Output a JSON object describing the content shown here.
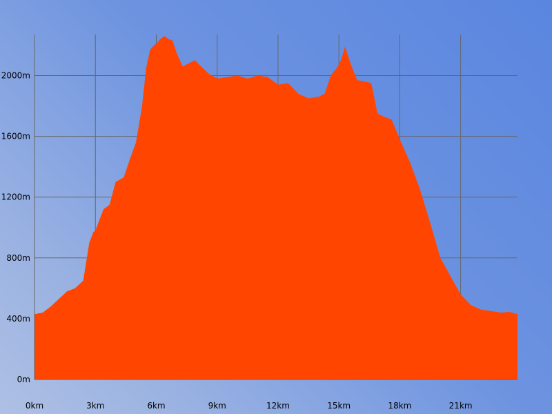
{
  "chart_data": {
    "type": "area",
    "title": "",
    "xlabel": "",
    "ylabel": "",
    "x_unit": "km",
    "y_unit": "m",
    "xlim": [
      0,
      23.8
    ],
    "ylim": [
      0,
      2270
    ],
    "grid": true,
    "legend": "none",
    "fill_color": "#ff4500",
    "grid_color": "#666666",
    "x_ticks": [
      {
        "value": 0,
        "label": "0km"
      },
      {
        "value": 3,
        "label": "3km"
      },
      {
        "value": 6,
        "label": "6km"
      },
      {
        "value": 9,
        "label": "9km"
      },
      {
        "value": 12,
        "label": "12km"
      },
      {
        "value": 15,
        "label": "15km"
      },
      {
        "value": 18,
        "label": "18km"
      },
      {
        "value": 21,
        "label": "21km"
      }
    ],
    "y_ticks": [
      {
        "value": 0,
        "label": "0m"
      },
      {
        "value": 400,
        "label": "400m"
      },
      {
        "value": 800,
        "label": "800m"
      },
      {
        "value": 1200,
        "label": "1200m"
      },
      {
        "value": 1600,
        "label": "1600m"
      },
      {
        "value": 2000,
        "label": "2000m"
      }
    ],
    "series": [
      {
        "x": [
          0,
          0.4,
          0.8,
          1.2,
          1.6,
          2.0,
          2.4,
          2.7,
          2.9,
          3.0,
          3.4,
          3.7,
          4.0,
          4.4,
          4.7,
          5.0,
          5.3,
          5.5,
          5.7,
          5.9,
          6.0,
          6.2,
          6.4,
          6.6,
          6.8,
          7.0,
          7.3,
          7.6,
          7.9,
          8.2,
          8.6,
          9.0,
          9.5,
          10.0,
          10.5,
          11.0,
          11.5,
          12.0,
          12.5,
          13.0,
          13.5,
          14.0,
          14.3,
          14.6,
          14.9,
          15.1,
          15.3,
          15.6,
          15.9,
          16.3,
          16.6,
          16.9,
          17.2,
          17.6,
          18.0,
          18.5,
          19.0,
          19.5,
          20.0,
          20.5,
          21.0,
          21.5,
          22.0,
          22.5,
          23.0,
          23.4,
          23.8
        ],
        "y": [
          430,
          440,
          480,
          530,
          580,
          600,
          650,
          900,
          970,
          980,
          1120,
          1150,
          1300,
          1330,
          1450,
          1560,
          1800,
          2050,
          2170,
          2200,
          2210,
          2240,
          2260,
          2240,
          2230,
          2150,
          2060,
          2080,
          2100,
          2060,
          2010,
          1980,
          1990,
          2000,
          1980,
          2000,
          1990,
          1940,
          1950,
          1880,
          1850,
          1860,
          1880,
          2000,
          2050,
          2100,
          2190,
          2070,
          1970,
          1960,
          1950,
          1750,
          1730,
          1710,
          1580,
          1430,
          1250,
          1030,
          800,
          680,
          560,
          490,
          460,
          450,
          440,
          445,
          430
        ]
      }
    ]
  }
}
